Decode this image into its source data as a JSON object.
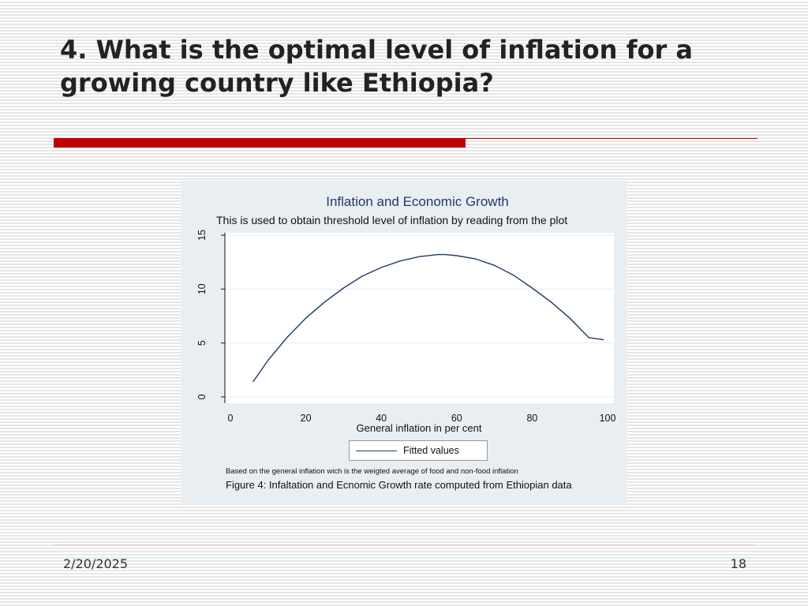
{
  "slide": {
    "title": "4. What is the optimal level of inflation for a growing country like Ethiopia?",
    "accent_color": "#c00000",
    "footer": {
      "date": "2/20/2025",
      "page_number": "18"
    }
  },
  "chart_data": {
    "type": "line",
    "title": "Inflation and Economic  Growth",
    "subtitle": "This is used to obtain threshold level of  inflation by reading from the plot",
    "xlabel": "General inflation in per cent",
    "ylabel": "",
    "xlim": [
      0,
      100
    ],
    "ylim": [
      0,
      15
    ],
    "x_ticks": [
      0,
      20,
      40,
      60,
      80,
      100
    ],
    "y_ticks": [
      0,
      5,
      10,
      15
    ],
    "grid": true,
    "legend": {
      "position": "bottom-center",
      "entries": [
        "Fitted values"
      ]
    },
    "series": [
      {
        "name": "Fitted values",
        "color": "#1f3a6b",
        "x": [
          6,
          10,
          15,
          20,
          25,
          30,
          35,
          40,
          45,
          50,
          55,
          57,
          60,
          65,
          70,
          75,
          80,
          85,
          90,
          95,
          99
        ],
        "y": [
          1.4,
          3.4,
          5.5,
          7.3,
          8.8,
          10.1,
          11.2,
          12.0,
          12.6,
          13.0,
          13.2,
          13.2,
          13.1,
          12.8,
          12.2,
          11.3,
          10.1,
          8.8,
          7.3,
          5.5,
          5.3
        ]
      }
    ],
    "note": "Based on the general inflation wich is the weigted average of food and non-food inflation",
    "caption": "Figure 4:  Infaltation and Ecnomic Growth rate computed from Ethiopian data"
  }
}
